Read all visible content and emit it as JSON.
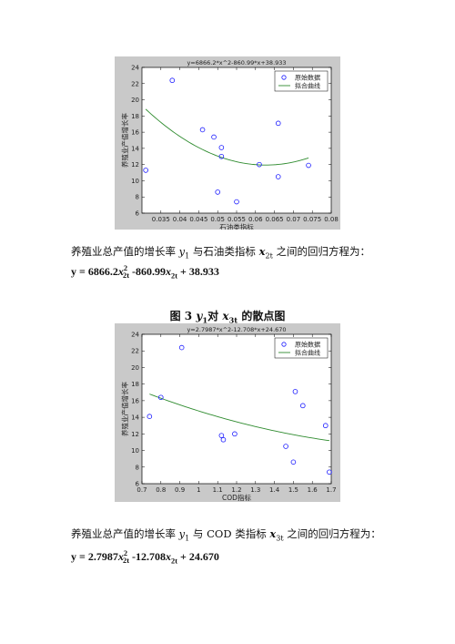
{
  "chart_data": [
    {
      "type": "scatter",
      "title": "y=6866.2*x^2-860.99*x+38.933",
      "xlabel": "石油类指标",
      "ylabel": "养殖业产值增长率",
      "xlim": [
        0.03,
        0.08
      ],
      "ylim": [
        6,
        24
      ],
      "xticks": [
        "0.035",
        "0.04",
        "0.045",
        "0.05",
        "0.055",
        "0.06",
        "0.065",
        "0.07",
        "0.075",
        "0.08"
      ],
      "yticks": [
        "6",
        "8",
        "10",
        "12",
        "14",
        "16",
        "18",
        "20",
        "22",
        "24"
      ],
      "legend": {
        "position": "top-right",
        "entries": [
          "原始数据",
          "拟合曲线"
        ]
      },
      "series": [
        {
          "name": "原始数据",
          "marker": "circle",
          "x": [
            0.031,
            0.038,
            0.046,
            0.049,
            0.05,
            0.051,
            0.051,
            0.055,
            0.061,
            0.066,
            0.066,
            0.074
          ],
          "y": [
            11.3,
            22.4,
            16.3,
            15.4,
            8.6,
            14.1,
            13.0,
            7.4,
            12.0,
            17.1,
            10.5,
            11.9
          ]
        },
        {
          "name": "拟合曲线",
          "type": "line",
          "fit": {
            "a": 6866.2,
            "b": -860.99,
            "c": 38.933
          },
          "x_range": [
            0.031,
            0.074
          ]
        }
      ]
    },
    {
      "type": "scatter",
      "title": "y=2.7987*x^2-12.708*x+24.670",
      "xlabel": "COD指标",
      "ylabel": "养殖业产值增长率",
      "xlim": [
        0.7,
        1.7
      ],
      "ylim": [
        6,
        24
      ],
      "xticks": [
        "0.7",
        "0.8",
        "0.9",
        "1",
        "1.1",
        "1.2",
        "1.3",
        "1.4",
        "1.5",
        "1.6",
        "1.7"
      ],
      "yticks": [
        "6",
        "8",
        "10",
        "12",
        "14",
        "16",
        "18",
        "20",
        "22",
        "24"
      ],
      "legend": {
        "position": "top-right",
        "entries": [
          "原始数据",
          "拟合曲线"
        ]
      },
      "series": [
        {
          "name": "原始数据",
          "marker": "circle",
          "x": [
            0.74,
            0.8,
            0.91,
            1.12,
            1.13,
            1.19,
            1.46,
            1.5,
            1.51,
            1.55,
            1.67,
            1.69
          ],
          "y": [
            14.1,
            16.4,
            22.4,
            11.8,
            11.3,
            12.0,
            10.5,
            8.6,
            17.1,
            15.4,
            13.0,
            7.4
          ]
        },
        {
          "name": "拟合曲线",
          "type": "line",
          "fit": {
            "a": 2.7987,
            "b": -12.708,
            "c": 24.67
          },
          "x_range": [
            0.74,
            1.69
          ]
        }
      ]
    }
  ],
  "text1": {
    "pre": "养殖业总产值的增长率 ",
    "y": "y",
    "ysub": "1",
    "mid": " 与石油类指标 ",
    "x": "x",
    "xsub": "2t",
    "post": " 之间的回归方程为："
  },
  "eq1": {
    "lhs": "y = 6866.2",
    "x1": "x",
    "x1sub": "2t",
    "x1sup": "2",
    "mid": " -860.99",
    "x2": "x",
    "x2sub": "2t",
    "rest": " + 38.933"
  },
  "fig3": {
    "pre": "图 3   ",
    "y": "y",
    "ysub": "1",
    "mid": "对 ",
    "x": "x",
    "xsub": "3t",
    "post": " 的散点图"
  },
  "text2": {
    "pre": "养殖业总产值的增长率 ",
    "y": "y",
    "ysub": "1",
    "mid": " 与 COD 类指标 ",
    "x": "x",
    "xsub": "3t",
    "post": " 之间的回归方程为："
  },
  "eq2": {
    "lhs": "y = 2.7987",
    "x1": "x",
    "x1sub": "2t",
    "x1sup": "2",
    "mid": " -12.708",
    "x2": "x",
    "x2sub": "2t",
    "rest": " + 24.670"
  }
}
